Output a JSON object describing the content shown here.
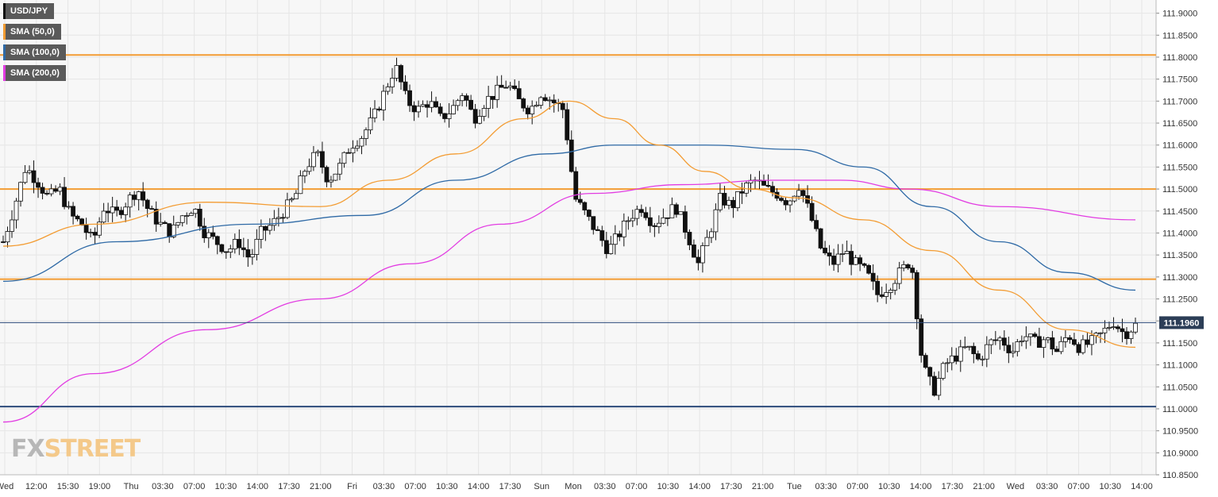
{
  "chart_data": {
    "type": "candlestick",
    "symbol": "USD/JPY",
    "legend": [
      {
        "label": "USD/JPY",
        "color": "#222222"
      },
      {
        "label": "SMA (50,0)",
        "color": "#f39c33"
      },
      {
        "label": "SMA (100,0)",
        "color": "#2f6aa6"
      },
      {
        "label": "SMA (200,0)",
        "color": "#e23ce2"
      }
    ],
    "ylim": [
      110.85,
      111.93
    ],
    "y_ticks": [
      "111.9000",
      "111.8500",
      "111.8000",
      "111.7500",
      "111.7000",
      "111.6500",
      "111.6000",
      "111.5500",
      "111.5000",
      "111.4500",
      "111.4000",
      "111.3500",
      "111.3000",
      "111.2500",
      "111.2000",
      "111.1500",
      "111.1000",
      "111.0500",
      "111.0000",
      "110.9500",
      "110.9000",
      "110.8500"
    ],
    "x_ticks": [
      "Wed",
      "12:00",
      "15:30",
      "19:00",
      "Thu",
      "03:30",
      "07:00",
      "10:30",
      "14:00",
      "17:30",
      "21:00",
      "Fri",
      "03:30",
      "07:00",
      "10:30",
      "14:00",
      "17:30",
      "Sun",
      "Mon",
      "03:30",
      "07:00",
      "10:30",
      "14:00",
      "17:30",
      "21:00",
      "Tue",
      "03:30",
      "07:00",
      "10:30",
      "14:00",
      "17:30",
      "21:00",
      "Wed",
      "03:30",
      "07:00",
      "10:30",
      "14:00"
    ],
    "last_price": "111.1960",
    "horizontal_levels": [
      {
        "value": 111.805,
        "color": "#f39c33"
      },
      {
        "value": 111.5,
        "color": "#f39c33"
      },
      {
        "value": 111.295,
        "color": "#f39c33"
      },
      {
        "value": 111.005,
        "color": "#2c4a7a"
      }
    ],
    "price_path": [
      111.38,
      111.46,
      111.55,
      111.52,
      111.48,
      111.5,
      111.44,
      111.42,
      111.38,
      111.46,
      111.44,
      111.47,
      111.5,
      111.45,
      111.42,
      111.4,
      111.44,
      111.46,
      111.4,
      111.38,
      111.36,
      111.38,
      111.34,
      111.4,
      111.42,
      111.45,
      111.48,
      111.55,
      111.58,
      111.52,
      111.55,
      111.6,
      111.62,
      111.66,
      111.72,
      111.78,
      111.7,
      111.68,
      111.7,
      111.66,
      111.68,
      111.72,
      111.66,
      111.7,
      111.72,
      111.74,
      111.7,
      111.68,
      111.72,
      111.7,
      111.68,
      111.48,
      111.44,
      111.4,
      111.36,
      111.4,
      111.44,
      111.46,
      111.42,
      111.44,
      111.46,
      111.4,
      111.33,
      111.4,
      111.48,
      111.46,
      111.5,
      111.52,
      111.5,
      111.49,
      111.47,
      111.51,
      111.44,
      111.36,
      111.33,
      111.36,
      111.33,
      111.31,
      111.26,
      111.28,
      111.31,
      111.34,
      111.1,
      111.04,
      111.1,
      111.12,
      111.14,
      111.11,
      111.15,
      111.16,
      111.13,
      111.17,
      111.15,
      111.16,
      111.13,
      111.17,
      111.14,
      111.15,
      111.17,
      111.2,
      111.17,
      111.19
    ],
    "sma50_anchor": [
      [
        0,
        111.37
      ],
      [
        8,
        111.42
      ],
      [
        18,
        111.47
      ],
      [
        28,
        111.46
      ],
      [
        34,
        111.52
      ],
      [
        40,
        111.58
      ],
      [
        46,
        111.66
      ],
      [
        50,
        111.7
      ],
      [
        54,
        111.66
      ],
      [
        58,
        111.6
      ],
      [
        62,
        111.54
      ],
      [
        66,
        111.5
      ],
      [
        70,
        111.48
      ],
      [
        76,
        111.43
      ],
      [
        82,
        111.36
      ],
      [
        88,
        111.27
      ],
      [
        94,
        111.18
      ],
      [
        100,
        111.14
      ]
    ],
    "sma100_anchor": [
      [
        0,
        111.29
      ],
      [
        10,
        111.38
      ],
      [
        22,
        111.42
      ],
      [
        32,
        111.44
      ],
      [
        40,
        111.52
      ],
      [
        48,
        111.58
      ],
      [
        54,
        111.6
      ],
      [
        62,
        111.6
      ],
      [
        70,
        111.59
      ],
      [
        76,
        111.55
      ],
      [
        82,
        111.46
      ],
      [
        88,
        111.38
      ],
      [
        94,
        111.31
      ],
      [
        100,
        111.27
      ]
    ],
    "sma200_anchor": [
      [
        0,
        110.97
      ],
      [
        8,
        111.08
      ],
      [
        18,
        111.18
      ],
      [
        28,
        111.25
      ],
      [
        36,
        111.33
      ],
      [
        44,
        111.42
      ],
      [
        52,
        111.49
      ],
      [
        60,
        111.51
      ],
      [
        68,
        111.52
      ],
      [
        74,
        111.52
      ],
      [
        80,
        111.5
      ],
      [
        88,
        111.46
      ],
      [
        100,
        111.43
      ]
    ]
  },
  "watermark": {
    "fx": "FX",
    "street": "STREET"
  }
}
